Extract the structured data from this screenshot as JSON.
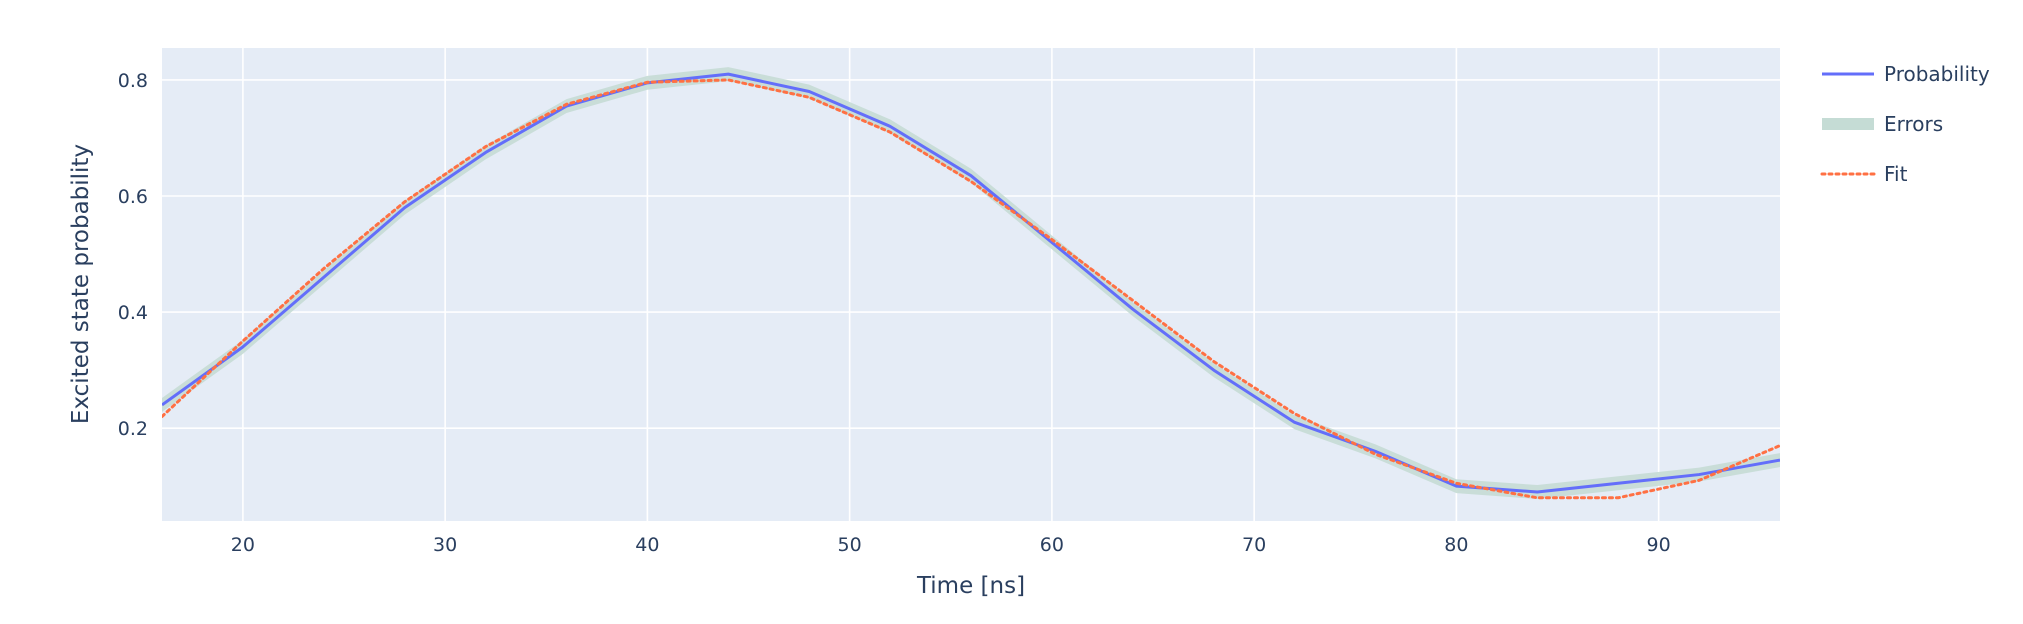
{
  "chart_data": {
    "type": "line",
    "xlabel": "Time [ns]",
    "ylabel": "Excited state probability",
    "xlim": [
      16,
      96
    ],
    "ylim": [
      0.04,
      0.855
    ],
    "xticks": [
      20,
      30,
      40,
      50,
      60,
      70,
      80,
      90
    ],
    "yticks": [
      0.2,
      0.4,
      0.6,
      0.8
    ],
    "grid": true,
    "legend_position": "right",
    "colors": {
      "plot_background": "#E5ECF6",
      "grid": "#ffffff",
      "probability": "#636EFA",
      "errors": "#C5DCD5",
      "fit": "#FF7043",
      "text": "#2a3f5f"
    },
    "series": [
      {
        "name": "Probability",
        "style": "solid",
        "x": [
          16,
          20,
          24,
          28,
          32,
          36,
          40,
          44,
          48,
          52,
          56,
          60,
          64,
          68,
          72,
          76,
          80,
          84,
          88,
          92,
          96
        ],
        "y": [
          0.24,
          0.34,
          0.46,
          0.58,
          0.675,
          0.755,
          0.795,
          0.81,
          0.78,
          0.72,
          0.635,
          0.52,
          0.405,
          0.3,
          0.21,
          0.16,
          0.1,
          0.09,
          0.105,
          0.12,
          0.145
        ],
        "error": [
          0.012,
          0.012,
          0.012,
          0.012,
          0.012,
          0.012,
          0.012,
          0.012,
          0.012,
          0.012,
          0.012,
          0.012,
          0.012,
          0.012,
          0.012,
          0.012,
          0.012,
          0.012,
          0.012,
          0.012,
          0.012
        ]
      },
      {
        "name": "Errors",
        "style": "band"
      },
      {
        "name": "Fit",
        "style": "dotted",
        "x": [
          16,
          20,
          24,
          28,
          32,
          36,
          40,
          44,
          48,
          52,
          56,
          60,
          64,
          68,
          72,
          76,
          80,
          84,
          88,
          92,
          96
        ],
        "y": [
          0.22,
          0.35,
          0.475,
          0.59,
          0.685,
          0.758,
          0.796,
          0.8,
          0.77,
          0.71,
          0.625,
          0.525,
          0.42,
          0.315,
          0.225,
          0.155,
          0.105,
          0.08,
          0.08,
          0.11,
          0.17
        ]
      }
    ]
  }
}
